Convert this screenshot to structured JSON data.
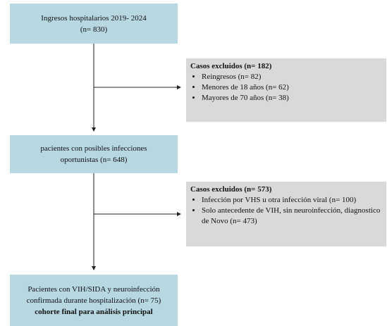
{
  "nodes": [
    {
      "lines": [
        "Ingresos hospitalarios 2019- 2024",
        "(n= 830)"
      ]
    },
    {
      "lines": [
        "pacientes con posibles infecciones",
        "oportunistas (n= 648)"
      ]
    },
    {
      "lines": [
        "Pacientes con VIH/SIDA y neuroinfección",
        "confirmada durante hospitalización (n= 75)"
      ],
      "bold_line": "cohorte final para análisis principal"
    }
  ],
  "exclusions": [
    {
      "title": "Casos excluidos (n= 182)",
      "items": [
        "Reingresos (n= 82)",
        "Menores de 18 años (n= 62)",
        "Mayores de 70 años (n= 38)"
      ]
    },
    {
      "title": "Casos excluidos (n= 573)",
      "items": [
        "Infección por VHS u otra infección viral (n= 100)",
        "Solo antecedente de VIH, sin neuroinfección, diagnostico de Novo (n= 473)"
      ]
    }
  ]
}
